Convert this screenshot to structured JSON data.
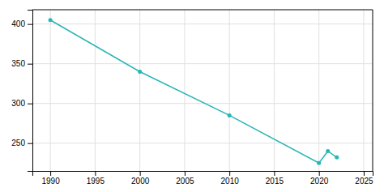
{
  "chart_data": {
    "type": "line",
    "x": [
      1990,
      2000,
      2010,
      2020,
      2021,
      2022
    ],
    "values": [
      405,
      340,
      285,
      225,
      240,
      232
    ],
    "color": "#2ab5b5",
    "marker": "circle",
    "xlim": [
      1988,
      2026
    ],
    "ylim": [
      215,
      418
    ],
    "xticks": [
      1990,
      1995,
      2000,
      2005,
      2010,
      2015,
      2020,
      2025
    ],
    "yticks": [
      250,
      300,
      350,
      400
    ],
    "grid": true
  }
}
